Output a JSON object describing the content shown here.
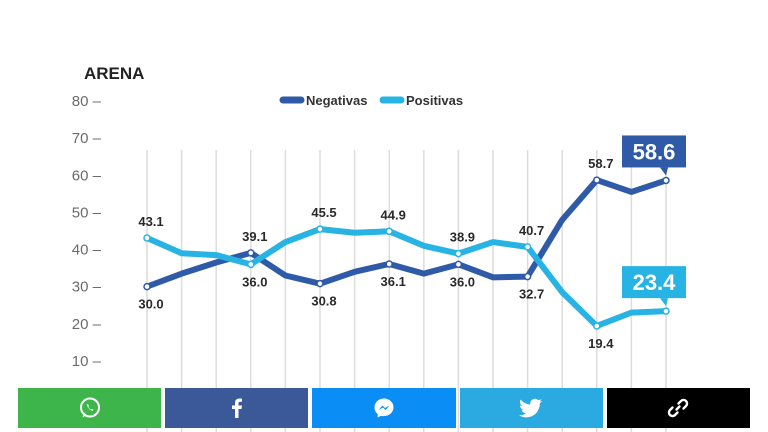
{
  "chart_data": {
    "type": "line",
    "title": "ARENA",
    "ylim": [
      0,
      80
    ],
    "yticks": [
      10,
      20,
      30,
      40,
      50,
      60,
      70,
      80
    ],
    "x_count": 16,
    "series": [
      {
        "name": "Negativas",
        "color": "#2f5aa8",
        "values": [
          30.0,
          33.5,
          36.5,
          39.1,
          33.0,
          30.8,
          34.0,
          36.1,
          33.5,
          36.0,
          32.5,
          32.7,
          48.0,
          58.7,
          55.5,
          58.6
        ]
      },
      {
        "name": "Positivas",
        "color": "#27b4e4",
        "values": [
          43.1,
          39.0,
          38.5,
          36.0,
          42.0,
          45.5,
          44.5,
          44.9,
          41.0,
          38.9,
          42.0,
          40.7,
          28.5,
          19.4,
          23.0,
          23.4
        ]
      }
    ],
    "data_labels": [
      {
        "series": 0,
        "index": 0,
        "text": "30.0",
        "pos": "below"
      },
      {
        "series": 1,
        "index": 0,
        "text": "43.1",
        "pos": "above"
      },
      {
        "series": 0,
        "index": 3,
        "text": "39.1",
        "pos": "above"
      },
      {
        "series": 1,
        "index": 3,
        "text": "36.0",
        "pos": "below"
      },
      {
        "series": 1,
        "index": 5,
        "text": "45.5",
        "pos": "above"
      },
      {
        "series": 0,
        "index": 5,
        "text": "30.8",
        "pos": "below"
      },
      {
        "series": 1,
        "index": 7,
        "text": "44.9",
        "pos": "above"
      },
      {
        "series": 0,
        "index": 7,
        "text": "36.1",
        "pos": "below"
      },
      {
        "series": 1,
        "index": 9,
        "text": "38.9",
        "pos": "above"
      },
      {
        "series": 0,
        "index": 9,
        "text": "36.0",
        "pos": "below"
      },
      {
        "series": 1,
        "index": 11,
        "text": "40.7",
        "pos": "above"
      },
      {
        "series": 0,
        "index": 11,
        "text": "32.7",
        "pos": "below"
      },
      {
        "series": 0,
        "index": 13,
        "text": "58.7",
        "pos": "above"
      },
      {
        "series": 1,
        "index": 13,
        "text": "19.4",
        "pos": "below"
      }
    ],
    "callouts": [
      {
        "series": 0,
        "index": 15,
        "text": "58.6"
      },
      {
        "series": 1,
        "index": 15,
        "text": "23.4"
      }
    ],
    "legend_position": "top-center",
    "grid": "vertical"
  },
  "share_bar": {
    "buttons": [
      {
        "name": "whatsapp",
        "icon": "whatsapp-icon",
        "color": "#3db54a"
      },
      {
        "name": "facebook",
        "icon": "facebook-icon",
        "color": "#3b5998"
      },
      {
        "name": "messenger",
        "icon": "messenger-icon",
        "color": "#0a8df5"
      },
      {
        "name": "twitter",
        "icon": "twitter-icon",
        "color": "#2ba9e1"
      },
      {
        "name": "copy-link",
        "icon": "link-icon",
        "color": "#000000"
      }
    ]
  }
}
